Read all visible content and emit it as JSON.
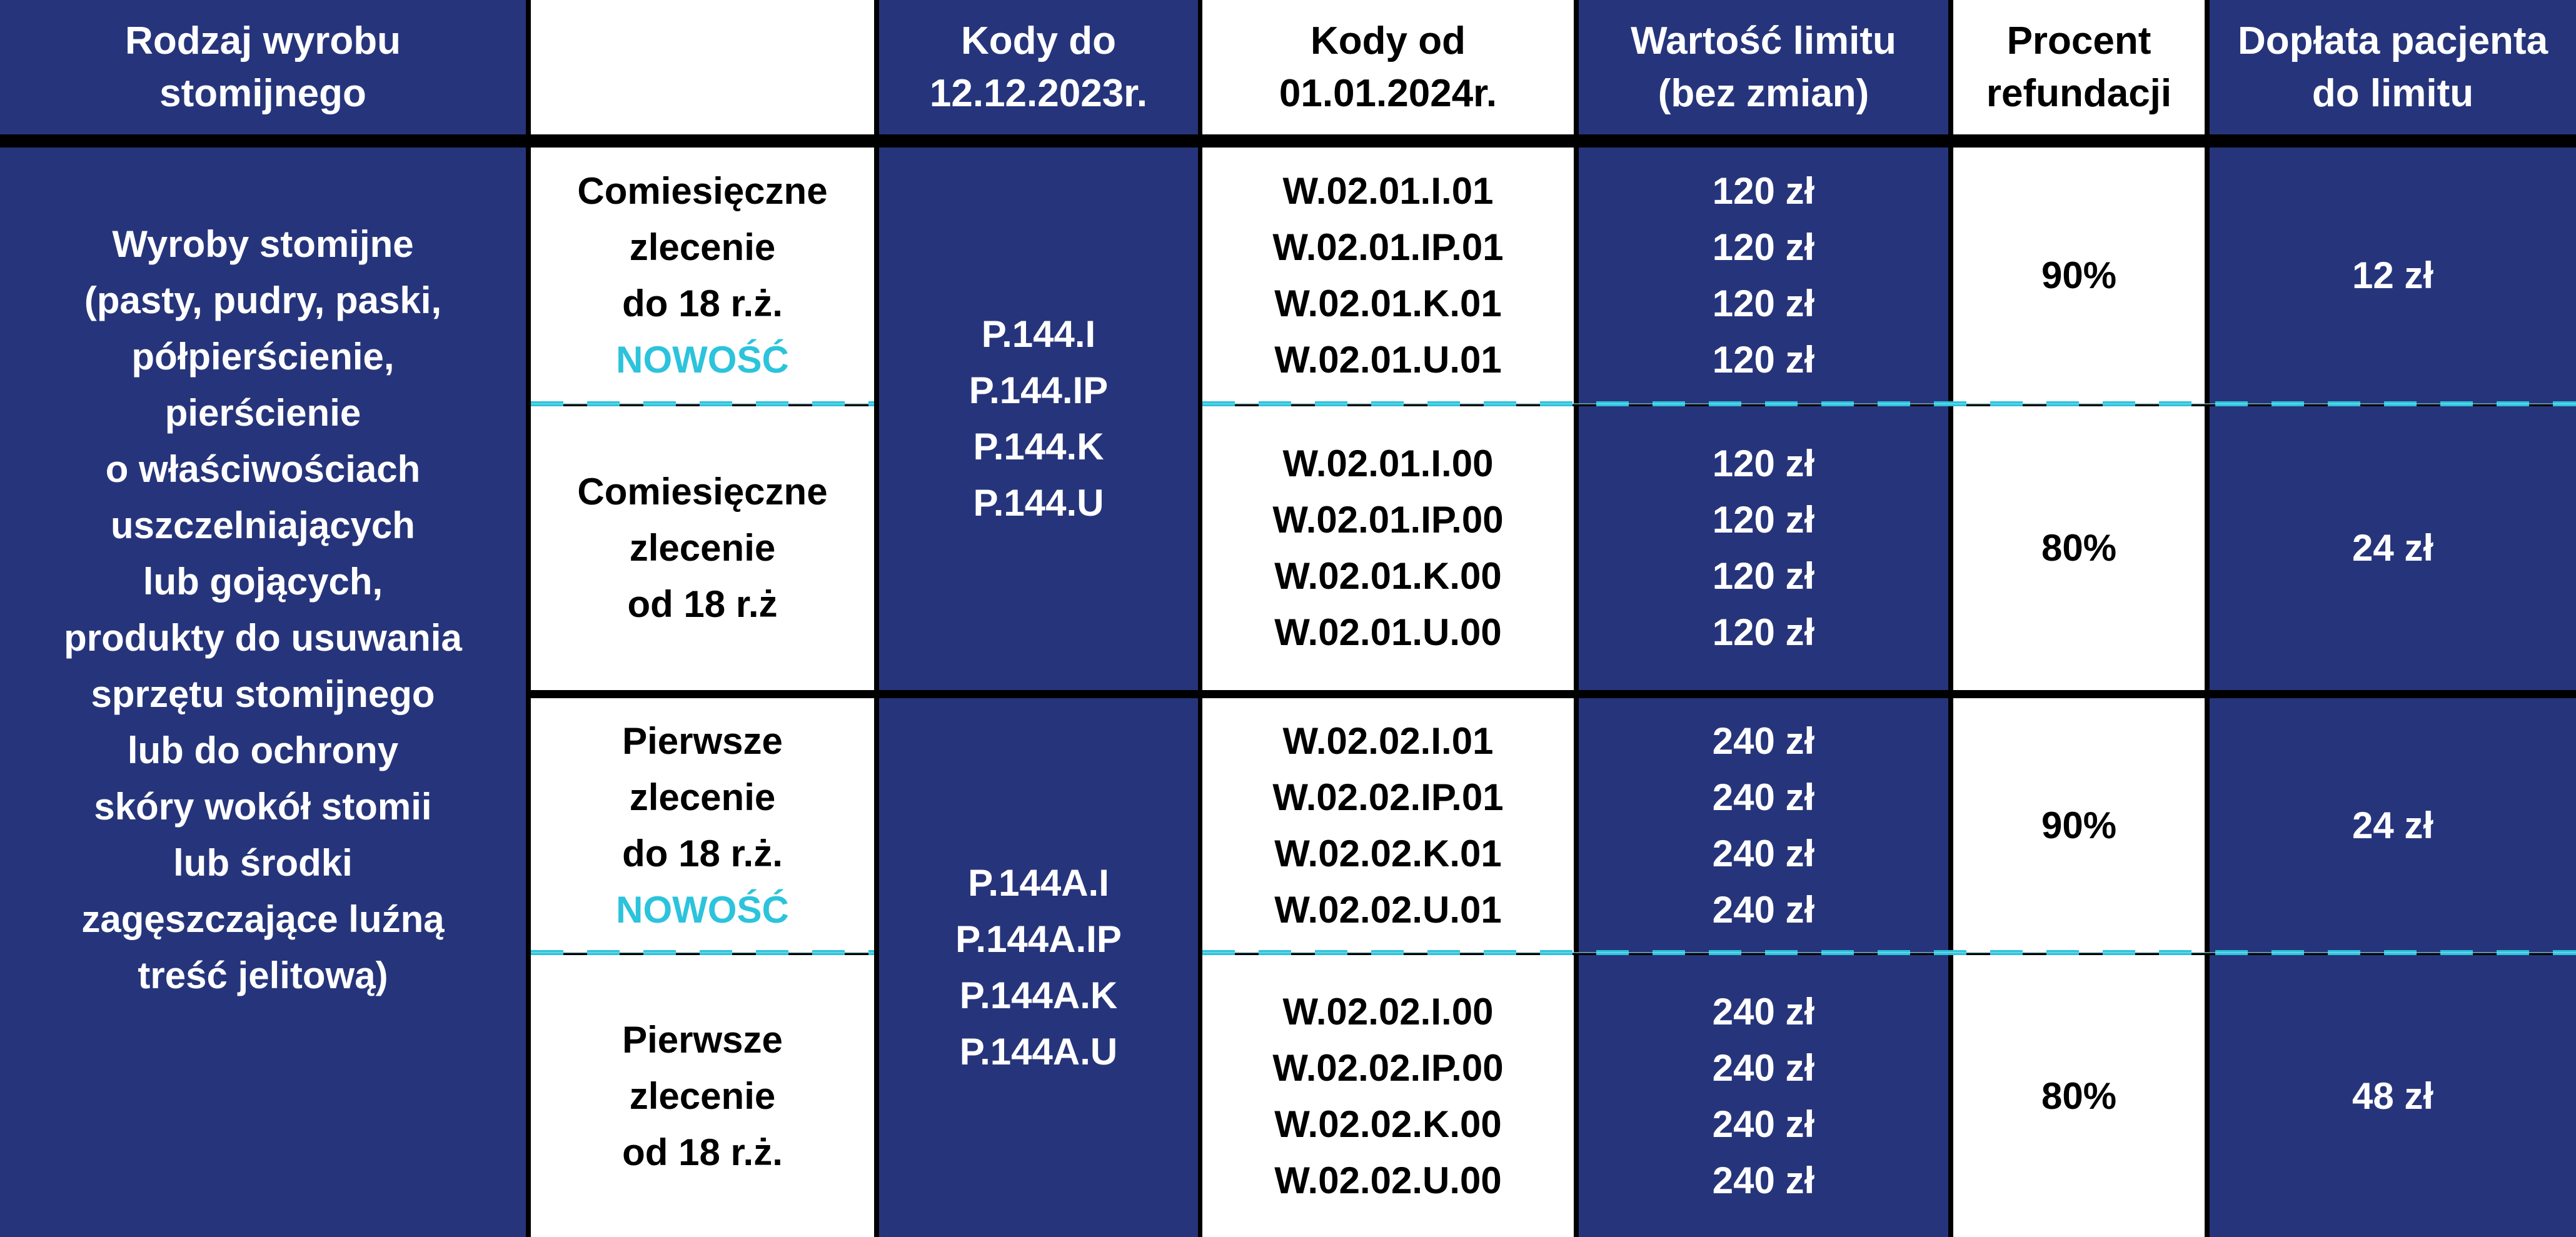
{
  "header": {
    "product_type": [
      "Rodzaj wyrobu",
      "stomijnego"
    ],
    "codes_old": [
      "Kody do",
      "12.12.2023r."
    ],
    "codes_new": [
      "Kody od",
      "01.01.2024r."
    ],
    "limit": [
      "Wartość limitu",
      "(bez zmian)"
    ],
    "refund": [
      "Procent",
      "refundacji"
    ],
    "copay": [
      "Dopłata pacjenta",
      "do limitu"
    ]
  },
  "product_description": [
    "Wyroby stomijne",
    "(pasty, pudry, paski,",
    "półpierścienie,",
    "pierścienie",
    "o właściwościach",
    "uszczelniających",
    "lub gojących,",
    "produkty do usuwania",
    "sprzętu stomijnego",
    "lub do ochrony",
    "skóry wokół stomii",
    "lub środki",
    "zagęszczające luźną",
    "treść jelitową)"
  ],
  "colors": {
    "navy": "#26357b",
    "accent": "#2cc3dc"
  },
  "groups": [
    {
      "old_codes": [
        "P.144.I",
        "P.144.IP",
        "P.144.K",
        "P.144.U"
      ],
      "rows": [
        {
          "order_type": [
            "Comiesięczne",
            "zlecenie",
            "do 18 r.ż."
          ],
          "badge": "NOWOŚĆ",
          "new_codes": [
            "W.02.01.I.01",
            "W.02.01.IP.01",
            "W.02.01.K.01",
            "W.02.01.U.01"
          ],
          "limits": [
            "120 zł",
            "120 zł",
            "120 zł",
            "120 zł"
          ],
          "refund": "90%",
          "copay": "12 zł"
        },
        {
          "order_type": [
            "Comiesięczne",
            "zlecenie",
            "od 18 r.ż"
          ],
          "new_codes": [
            "W.02.01.I.00",
            "W.02.01.IP.00",
            "W.02.01.K.00",
            "W.02.01.U.00"
          ],
          "limits": [
            "120 zł",
            "120 zł",
            "120 zł",
            "120 zł"
          ],
          "refund": "80%",
          "copay": "24 zł"
        }
      ]
    },
    {
      "old_codes": [
        "P.144A.I",
        "P.144A.IP",
        "P.144A.K",
        "P.144A.U"
      ],
      "rows": [
        {
          "order_type": [
            "Pierwsze",
            "zlecenie",
            "do 18 r.ż."
          ],
          "badge": "NOWOŚĆ",
          "new_codes": [
            "W.02.02.I.01",
            "W.02.02.IP.01",
            "W.02.02.K.01",
            "W.02.02.U.01"
          ],
          "limits": [
            "240 zł",
            "240 zł",
            "240 zł",
            "240 zł"
          ],
          "refund": "90%",
          "copay": "24 zł"
        },
        {
          "order_type": [
            "Pierwsze",
            "zlecenie",
            "od 18 r.ż."
          ],
          "new_codes": [
            "W.02.02.I.00",
            "W.02.02.IP.00",
            "W.02.02.K.00",
            "W.02.02.U.00"
          ],
          "limits": [
            "240 zł",
            "240 zł",
            "240 zł",
            "240 zł"
          ],
          "refund": "80%",
          "copay": "48 zł"
        }
      ]
    }
  ]
}
